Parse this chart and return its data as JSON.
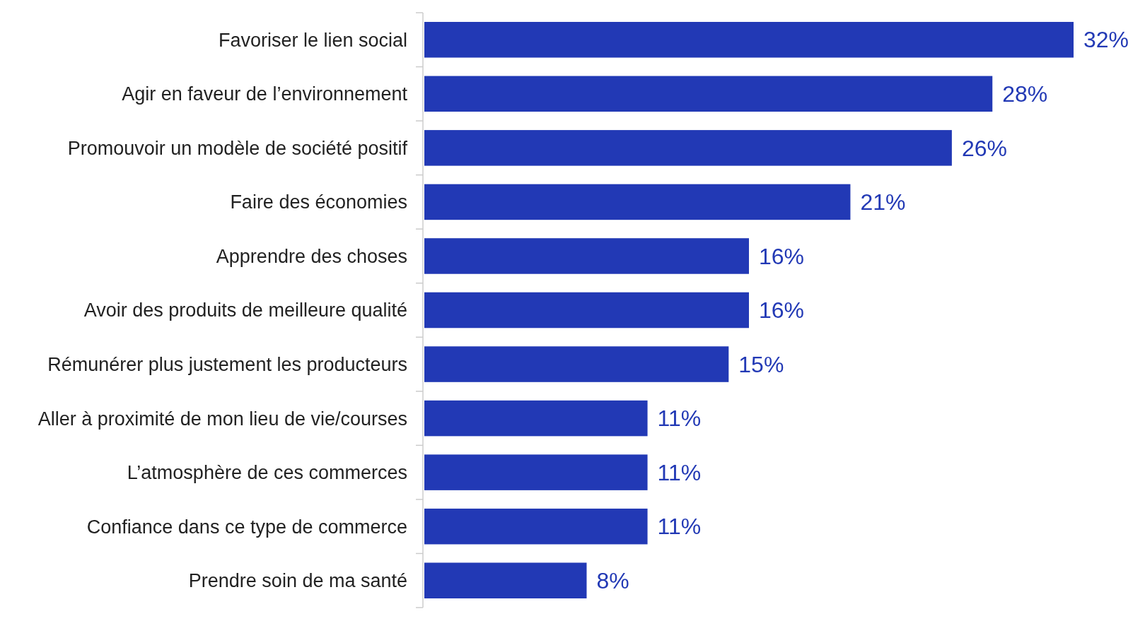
{
  "chart_data": {
    "type": "bar",
    "orientation": "horizontal",
    "categories": [
      "Favoriser le lien social",
      "Agir en faveur de l’environnement",
      "Promouvoir un modèle de société positif",
      "Faire des économies",
      "Apprendre des choses",
      "Avoir des produits de meilleure qualité",
      "Rémunérer plus justement les producteurs",
      "Aller à proximité de mon lieu de vie/courses",
      "L’atmosphère de ces commerces",
      "Confiance dans ce type de commerce",
      "Prendre soin de ma santé"
    ],
    "values": [
      32,
      28,
      26,
      21,
      16,
      16,
      15,
      11,
      11,
      11,
      8
    ],
    "value_labels": [
      "32%",
      "28%",
      "26%",
      "21%",
      "16%",
      "16%",
      "15%",
      "11%",
      "11%",
      "11%",
      "8%"
    ],
    "color": "#2239b5"
  }
}
